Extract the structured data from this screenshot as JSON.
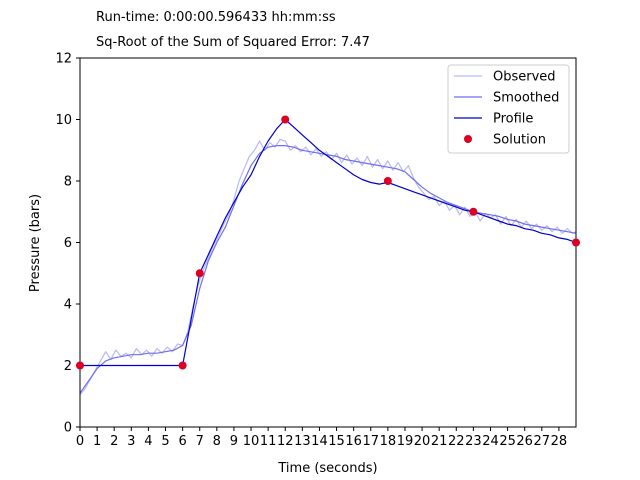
{
  "header": {
    "runtime_text": "Run-time: 0:00:00.596433 hh:mm:ss",
    "error_text": "Sq-Root of the Sum of Squared Error: 7.47"
  },
  "chart_data": {
    "type": "line",
    "title": "",
    "xlabel": "Time (seconds)",
    "ylabel": "Pressure (bars)",
    "xlim": [
      0,
      29
    ],
    "ylim": [
      0,
      12
    ],
    "x_ticks": [
      0,
      1,
      2,
      3,
      4,
      5,
      6,
      7,
      8,
      9,
      10,
      11,
      12,
      13,
      14,
      15,
      16,
      17,
      18,
      19,
      20,
      21,
      22,
      23,
      24,
      25,
      26,
      27,
      28
    ],
    "y_ticks": [
      0,
      2,
      4,
      6,
      8,
      10,
      12
    ],
    "grid": false,
    "legend_position": "top-right",
    "legend": [
      "Observed",
      "Smoothed",
      "Profile",
      "Solution"
    ],
    "colors": {
      "observed": "#b8b8f6",
      "smoothed": "#6f6ff2",
      "profile": "#0000cc",
      "solution": "#dd0022"
    },
    "series": [
      {
        "name": "Observed",
        "x": [
          0,
          0.3,
          0.6,
          0.9,
          1.2,
          1.5,
          1.8,
          2.1,
          2.4,
          2.7,
          3.0,
          3.3,
          3.6,
          3.9,
          4.2,
          4.5,
          4.8,
          5.1,
          5.4,
          5.7,
          6.0,
          6.3,
          6.6,
          6.9,
          7.2,
          7.5,
          7.8,
          8.1,
          8.4,
          8.7,
          9.0,
          9.3,
          9.6,
          9.9,
          10.2,
          10.5,
          10.8,
          11.1,
          11.4,
          11.7,
          12.0,
          12.3,
          12.6,
          12.9,
          13.2,
          13.5,
          13.8,
          14.1,
          14.4,
          14.7,
          15.0,
          15.3,
          15.6,
          15.9,
          16.2,
          16.5,
          16.8,
          17.1,
          17.4,
          17.7,
          18.0,
          18.3,
          18.6,
          18.9,
          19.2,
          19.5,
          19.8,
          20.1,
          20.4,
          20.7,
          21.0,
          21.3,
          21.6,
          21.9,
          22.2,
          22.5,
          22.8,
          23.1,
          23.4,
          23.7,
          24.0,
          24.3,
          24.6,
          24.9,
          25.2,
          25.5,
          25.8,
          26.1,
          26.4,
          26.7,
          27.0,
          27.3,
          27.6,
          27.9,
          28.2,
          28.5,
          28.8,
          29.0
        ],
        "y": [
          1.05,
          1.25,
          1.55,
          1.85,
          2.15,
          2.45,
          2.2,
          2.5,
          2.3,
          2.4,
          2.25,
          2.55,
          2.35,
          2.5,
          2.3,
          2.55,
          2.4,
          2.6,
          2.45,
          2.7,
          2.65,
          3.1,
          3.9,
          4.6,
          5.1,
          5.5,
          5.9,
          6.2,
          6.6,
          6.9,
          7.4,
          8.0,
          8.4,
          8.8,
          9.0,
          9.3,
          9.0,
          9.25,
          9.1,
          9.35,
          9.3,
          9.0,
          9.15,
          8.95,
          9.1,
          8.85,
          9.05,
          8.8,
          8.95,
          8.7,
          8.9,
          8.6,
          8.85,
          8.55,
          8.75,
          8.5,
          8.8,
          8.45,
          8.7,
          8.4,
          8.65,
          8.35,
          8.6,
          8.3,
          8.5,
          8.1,
          7.8,
          7.6,
          7.4,
          7.5,
          7.2,
          7.35,
          7.05,
          7.2,
          6.9,
          7.15,
          6.85,
          7.0,
          6.7,
          6.95,
          6.8,
          6.9,
          6.6,
          6.85,
          6.55,
          6.75,
          6.5,
          6.7,
          6.45,
          6.6,
          6.4,
          6.55,
          6.35,
          6.5,
          6.3,
          6.45,
          6.3,
          6.35
        ]
      },
      {
        "name": "Smoothed",
        "x": [
          0,
          0.5,
          1,
          1.5,
          2,
          2.5,
          3,
          3.5,
          4,
          4.5,
          5,
          5.5,
          6,
          6.5,
          7,
          7.5,
          8,
          8.5,
          9,
          9.5,
          10,
          10.5,
          11,
          11.5,
          12,
          12.5,
          13,
          13.5,
          14,
          14.5,
          15,
          15.5,
          16,
          16.5,
          17,
          17.5,
          18,
          18.5,
          19,
          19.5,
          20,
          20.5,
          21,
          21.5,
          22,
          22.5,
          23,
          23.5,
          24,
          24.5,
          25,
          25.5,
          26,
          26.5,
          27,
          27.5,
          28,
          28.5,
          29
        ],
        "y": [
          1.1,
          1.5,
          1.9,
          2.15,
          2.25,
          2.3,
          2.35,
          2.35,
          2.4,
          2.4,
          2.45,
          2.5,
          2.65,
          3.3,
          4.5,
          5.4,
          6.0,
          6.5,
          7.2,
          7.9,
          8.5,
          8.9,
          9.1,
          9.15,
          9.15,
          9.1,
          9.0,
          8.95,
          8.9,
          8.85,
          8.8,
          8.7,
          8.65,
          8.6,
          8.55,
          8.5,
          8.45,
          8.4,
          8.3,
          8.05,
          7.8,
          7.6,
          7.45,
          7.3,
          7.2,
          7.1,
          7.0,
          6.95,
          6.9,
          6.85,
          6.75,
          6.7,
          6.6,
          6.55,
          6.5,
          6.45,
          6.4,
          6.35,
          6.3
        ]
      },
      {
        "name": "Profile",
        "x": [
          0,
          6,
          7,
          7.5,
          8,
          8.5,
          9,
          9.5,
          10,
          10.5,
          11,
          11.5,
          12,
          12.5,
          13,
          13.5,
          14,
          14.5,
          15,
          15.5,
          16,
          16.5,
          17,
          17.5,
          18,
          18.5,
          19,
          19.5,
          20,
          20.5,
          21,
          21.5,
          22,
          22.5,
          23,
          23.5,
          24,
          24.5,
          25,
          25.5,
          26,
          26.5,
          27,
          27.5,
          28,
          28.5,
          29
        ],
        "y": [
          2,
          2,
          5,
          5.6,
          6.2,
          6.8,
          7.3,
          7.8,
          8.2,
          8.8,
          9.3,
          9.7,
          10.0,
          9.75,
          9.5,
          9.25,
          9.0,
          8.8,
          8.6,
          8.4,
          8.2,
          8.05,
          7.95,
          7.9,
          7.95,
          7.85,
          7.75,
          7.65,
          7.55,
          7.45,
          7.35,
          7.25,
          7.15,
          7.05,
          7.0,
          6.9,
          6.8,
          6.7,
          6.6,
          6.55,
          6.45,
          6.4,
          6.3,
          6.25,
          6.15,
          6.1,
          6.0
        ]
      },
      {
        "name": "Solution",
        "x": [
          0,
          6,
          7,
          12,
          18,
          23,
          29
        ],
        "y": [
          2,
          2,
          5,
          10,
          8,
          7,
          6
        ]
      }
    ]
  }
}
